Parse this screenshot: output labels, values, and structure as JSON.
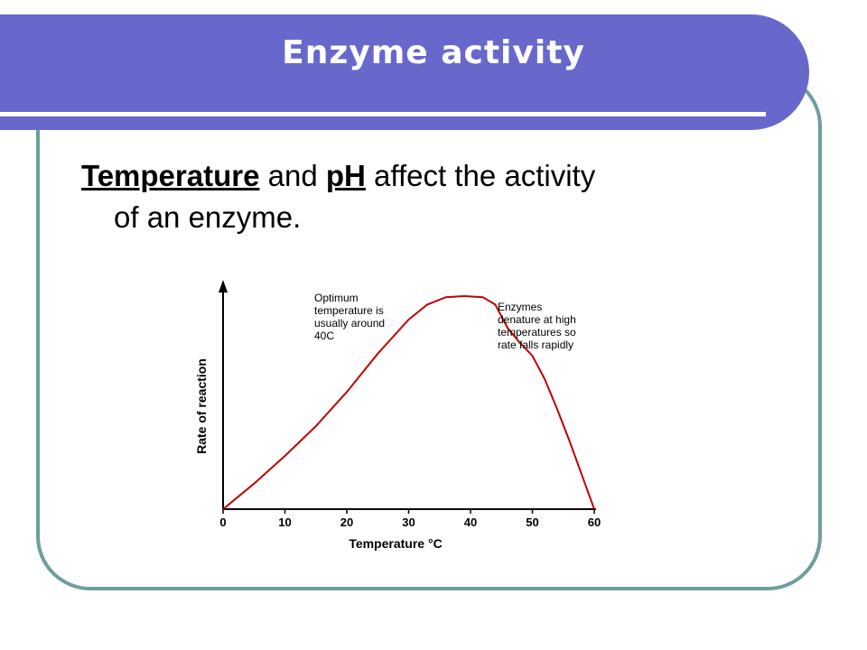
{
  "slide": {
    "title": "Enzyme activity",
    "text": {
      "term1": "Temperature",
      "and": " and ",
      "term2": "pH",
      "rest1": " affect the activity",
      "rest2": "of an enzyme."
    }
  },
  "colors": {
    "banner": "#6868cc",
    "frame": "#6f9d9d",
    "curve": "#c00000"
  },
  "chart_data": {
    "type": "line",
    "title": "",
    "xlabel": "Temperature °C",
    "ylabel": "Rate of reaction",
    "xlim": [
      0,
      60
    ],
    "xticks": [
      0,
      10,
      20,
      30,
      40,
      50,
      60
    ],
    "grid": false,
    "series": [
      {
        "x": [
          0,
          5,
          10,
          15,
          20,
          25,
          30,
          33,
          36,
          39,
          42,
          44,
          46,
          48,
          50,
          52,
          54,
          56,
          58,
          60
        ],
        "y": [
          0,
          0.12,
          0.25,
          0.39,
          0.55,
          0.73,
          0.89,
          0.96,
          0.995,
          1.0,
          0.995,
          0.96,
          0.85,
          0.78,
          0.72,
          0.61,
          0.47,
          0.32,
          0.16,
          0
        ]
      }
    ],
    "annotations": [
      {
        "lines": [
          "Optimum",
          "temperature is",
          "usually around",
          "40C"
        ]
      },
      {
        "lines": [
          "Enzymes",
          "denature at high",
          "temperatures so",
          "rate falls rapidly"
        ]
      }
    ]
  }
}
